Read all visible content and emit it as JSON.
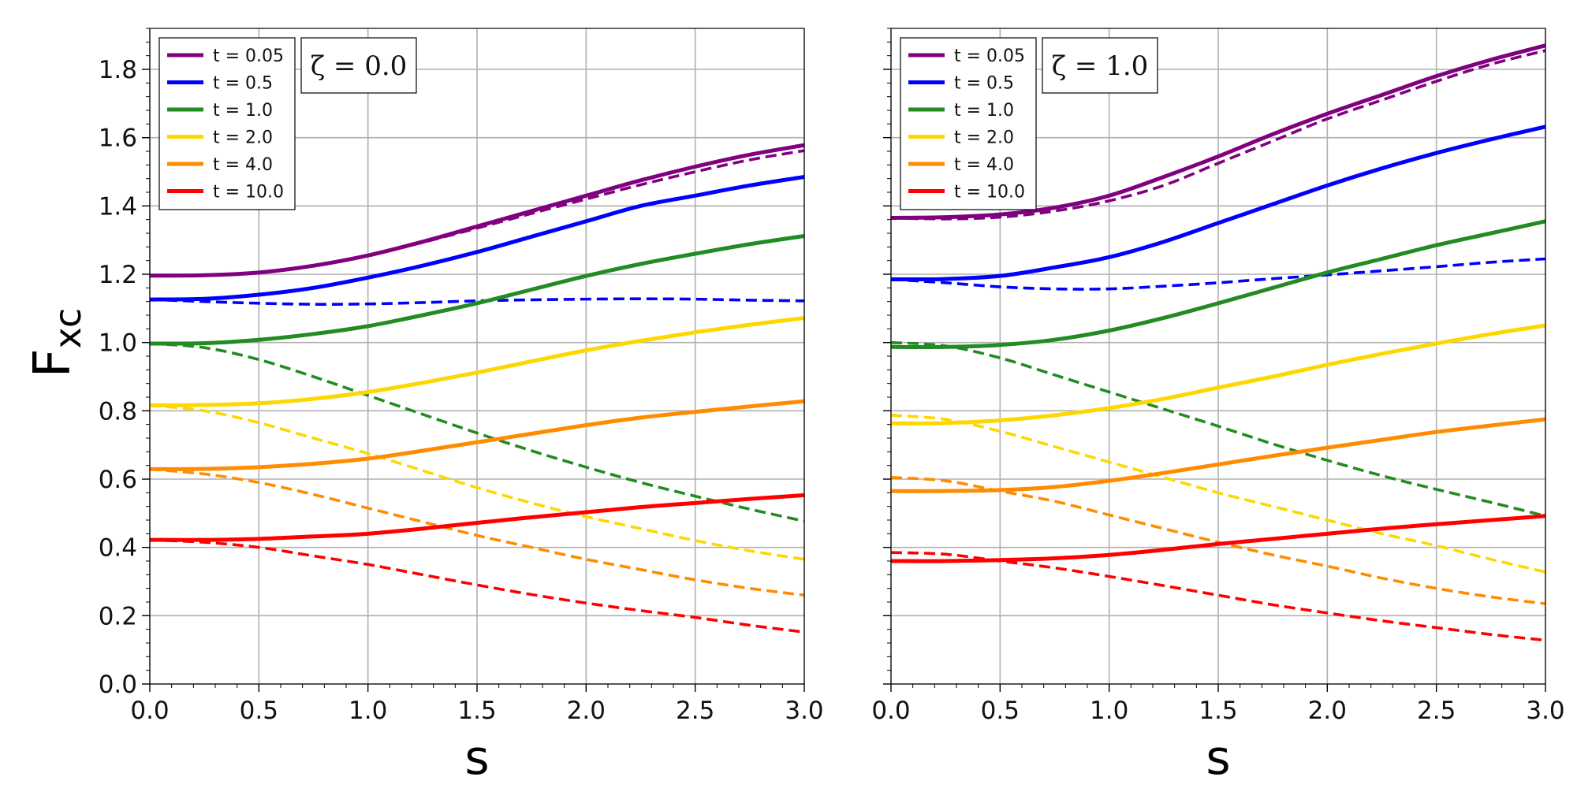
{
  "chart_data": [
    {
      "type": "line",
      "annotation": "ζ = 0.0",
      "xlabel": "s",
      "ylabel": "F",
      "ylabel_subscript": "xc",
      "xlim": [
        0.0,
        3.0
      ],
      "ylim": [
        0.0,
        1.92
      ],
      "xticks": [
        "0.0",
        "0.5",
        "1.0",
        "1.5",
        "2.0",
        "2.5",
        "3.0"
      ],
      "yticks": [
        "0.0",
        "0.2",
        "0.4",
        "0.6",
        "0.8",
        "1.0",
        "1.2",
        "1.4",
        "1.6",
        "1.8"
      ],
      "grid": true,
      "legend_position": "top-left",
      "legend": [
        "t = 0.05",
        "t = 0.5",
        "t = 1.0",
        "t = 2.0",
        "t = 4.0",
        "t = 10.0"
      ],
      "x": [
        0.0,
        0.25,
        0.5,
        0.75,
        1.0,
        1.25,
        1.5,
        1.75,
        2.0,
        2.25,
        2.5,
        2.75,
        3.0
      ],
      "series": [
        {
          "name": "t = 0.05",
          "style": "solid",
          "color": "#800080",
          "values": [
            1.196,
            1.197,
            1.205,
            1.225,
            1.255,
            1.295,
            1.34,
            1.385,
            1.43,
            1.475,
            1.515,
            1.55,
            1.578
          ]
        },
        {
          "name": "t = 0.05",
          "style": "dashed",
          "color": "#800080",
          "values": [
            1.196,
            1.197,
            1.205,
            1.225,
            1.255,
            1.293,
            1.335,
            1.378,
            1.42,
            1.462,
            1.5,
            1.535,
            1.562
          ]
        },
        {
          "name": "t = 0.5",
          "style": "solid",
          "color": "#0000ff",
          "values": [
            1.126,
            1.128,
            1.14,
            1.16,
            1.19,
            1.225,
            1.265,
            1.31,
            1.355,
            1.4,
            1.43,
            1.46,
            1.485
          ]
        },
        {
          "name": "t = 0.5",
          "style": "dashed",
          "color": "#0000ff",
          "values": [
            1.126,
            1.12,
            1.115,
            1.112,
            1.113,
            1.117,
            1.122,
            1.125,
            1.127,
            1.128,
            1.127,
            1.124,
            1.122
          ]
        },
        {
          "name": "t = 1.0",
          "style": "solid",
          "color": "#228b22",
          "values": [
            0.997,
            0.998,
            1.008,
            1.025,
            1.048,
            1.08,
            1.115,
            1.155,
            1.195,
            1.23,
            1.26,
            1.288,
            1.312
          ]
        },
        {
          "name": "t = 1.0",
          "style": "dashed",
          "color": "#228b22",
          "values": [
            0.997,
            0.985,
            0.95,
            0.9,
            0.845,
            0.79,
            0.735,
            0.683,
            0.635,
            0.59,
            0.55,
            0.512,
            0.477
          ]
        },
        {
          "name": "t = 2.0",
          "style": "solid",
          "color": "#ffd700",
          "values": [
            0.816,
            0.817,
            0.822,
            0.835,
            0.855,
            0.882,
            0.912,
            0.945,
            0.977,
            1.005,
            1.03,
            1.052,
            1.072
          ]
        },
        {
          "name": "t = 2.0",
          "style": "dashed",
          "color": "#ffd700",
          "values": [
            0.816,
            0.8,
            0.765,
            0.72,
            0.675,
            0.625,
            0.575,
            0.53,
            0.49,
            0.455,
            0.42,
            0.39,
            0.365
          ]
        },
        {
          "name": "t = 4.0",
          "style": "solid",
          "color": "#ff8c00",
          "values": [
            0.629,
            0.63,
            0.635,
            0.645,
            0.66,
            0.683,
            0.708,
            0.733,
            0.758,
            0.78,
            0.797,
            0.813,
            0.828
          ]
        },
        {
          "name": "t = 4.0",
          "style": "dashed",
          "color": "#ff8c00",
          "values": [
            0.629,
            0.615,
            0.59,
            0.555,
            0.515,
            0.475,
            0.435,
            0.4,
            0.365,
            0.335,
            0.305,
            0.28,
            0.26
          ]
        },
        {
          "name": "t = 10.0",
          "style": "solid",
          "color": "#ff0000",
          "values": [
            0.422,
            0.422,
            0.425,
            0.432,
            0.44,
            0.455,
            0.472,
            0.488,
            0.503,
            0.518,
            0.53,
            0.542,
            0.553
          ]
        },
        {
          "name": "t = 10.0",
          "style": "dashed",
          "color": "#ff0000",
          "values": [
            0.422,
            0.415,
            0.4,
            0.375,
            0.35,
            0.32,
            0.29,
            0.262,
            0.237,
            0.215,
            0.195,
            0.172,
            0.152
          ]
        }
      ]
    },
    {
      "type": "line",
      "annotation": "ζ = 1.0",
      "xlabel": "s",
      "xlim": [
        0.0,
        3.0
      ],
      "ylim": [
        0.0,
        1.92
      ],
      "xticks": [
        "0.0",
        "0.5",
        "1.0",
        "1.5",
        "2.0",
        "2.5",
        "3.0"
      ],
      "grid": true,
      "legend_position": "top-left",
      "legend": [
        "t = 0.05",
        "t = 0.5",
        "t = 1.0",
        "t = 2.0",
        "t = 4.0",
        "t = 10.0"
      ],
      "x": [
        0.0,
        0.25,
        0.5,
        0.75,
        1.0,
        1.25,
        1.5,
        1.75,
        2.0,
        2.25,
        2.5,
        2.75,
        3.0
      ],
      "series": [
        {
          "name": "t = 0.05",
          "style": "solid",
          "color": "#800080",
          "values": [
            1.365,
            1.367,
            1.375,
            1.395,
            1.43,
            1.485,
            1.545,
            1.61,
            1.67,
            1.725,
            1.78,
            1.828,
            1.87
          ]
        },
        {
          "name": "t = 0.05",
          "style": "dashed",
          "color": "#800080",
          "values": [
            1.365,
            1.362,
            1.367,
            1.385,
            1.415,
            1.46,
            1.525,
            1.59,
            1.655,
            1.71,
            1.765,
            1.815,
            1.855
          ]
        },
        {
          "name": "t = 0.5",
          "style": "solid",
          "color": "#0000ff",
          "values": [
            1.185,
            1.186,
            1.195,
            1.22,
            1.25,
            1.295,
            1.35,
            1.405,
            1.46,
            1.51,
            1.555,
            1.595,
            1.632
          ]
        },
        {
          "name": "t = 0.5",
          "style": "dashed",
          "color": "#0000ff",
          "values": [
            1.185,
            1.175,
            1.163,
            1.157,
            1.157,
            1.165,
            1.175,
            1.187,
            1.198,
            1.21,
            1.222,
            1.235,
            1.245
          ]
        },
        {
          "name": "t = 1.0",
          "style": "solid",
          "color": "#228b22",
          "values": [
            0.987,
            0.987,
            0.993,
            1.008,
            1.035,
            1.072,
            1.115,
            1.16,
            1.205,
            1.245,
            1.285,
            1.32,
            1.355
          ]
        },
        {
          "name": "t = 1.0",
          "style": "dashed",
          "color": "#228b22",
          "values": [
            1.0,
            0.99,
            0.955,
            0.905,
            0.855,
            0.805,
            0.755,
            0.703,
            0.655,
            0.61,
            0.57,
            0.532,
            0.492
          ]
        },
        {
          "name": "t = 2.0",
          "style": "solid",
          "color": "#ffd700",
          "values": [
            0.763,
            0.764,
            0.772,
            0.787,
            0.808,
            0.835,
            0.868,
            0.9,
            0.935,
            0.967,
            0.997,
            1.025,
            1.05
          ]
        },
        {
          "name": "t = 2.0",
          "style": "dashed",
          "color": "#ffd700",
          "values": [
            0.787,
            0.775,
            0.74,
            0.695,
            0.65,
            0.605,
            0.56,
            0.52,
            0.48,
            0.44,
            0.405,
            0.365,
            0.328
          ]
        },
        {
          "name": "t = 4.0",
          "style": "solid",
          "color": "#ff8c00",
          "values": [
            0.565,
            0.565,
            0.568,
            0.577,
            0.595,
            0.618,
            0.643,
            0.668,
            0.692,
            0.715,
            0.738,
            0.757,
            0.775
          ]
        },
        {
          "name": "t = 4.0",
          "style": "dashed",
          "color": "#ff8c00",
          "values": [
            0.605,
            0.595,
            0.565,
            0.535,
            0.495,
            0.455,
            0.415,
            0.378,
            0.345,
            0.31,
            0.28,
            0.255,
            0.235
          ]
        },
        {
          "name": "t = 10.0",
          "style": "solid",
          "color": "#ff0000",
          "values": [
            0.36,
            0.36,
            0.363,
            0.368,
            0.378,
            0.393,
            0.41,
            0.425,
            0.44,
            0.455,
            0.468,
            0.48,
            0.492
          ]
        },
        {
          "name": "t = 10.0",
          "style": "dashed",
          "color": "#ff0000",
          "values": [
            0.385,
            0.38,
            0.36,
            0.34,
            0.315,
            0.288,
            0.26,
            0.232,
            0.208,
            0.185,
            0.165,
            0.145,
            0.128
          ]
        }
      ]
    }
  ]
}
